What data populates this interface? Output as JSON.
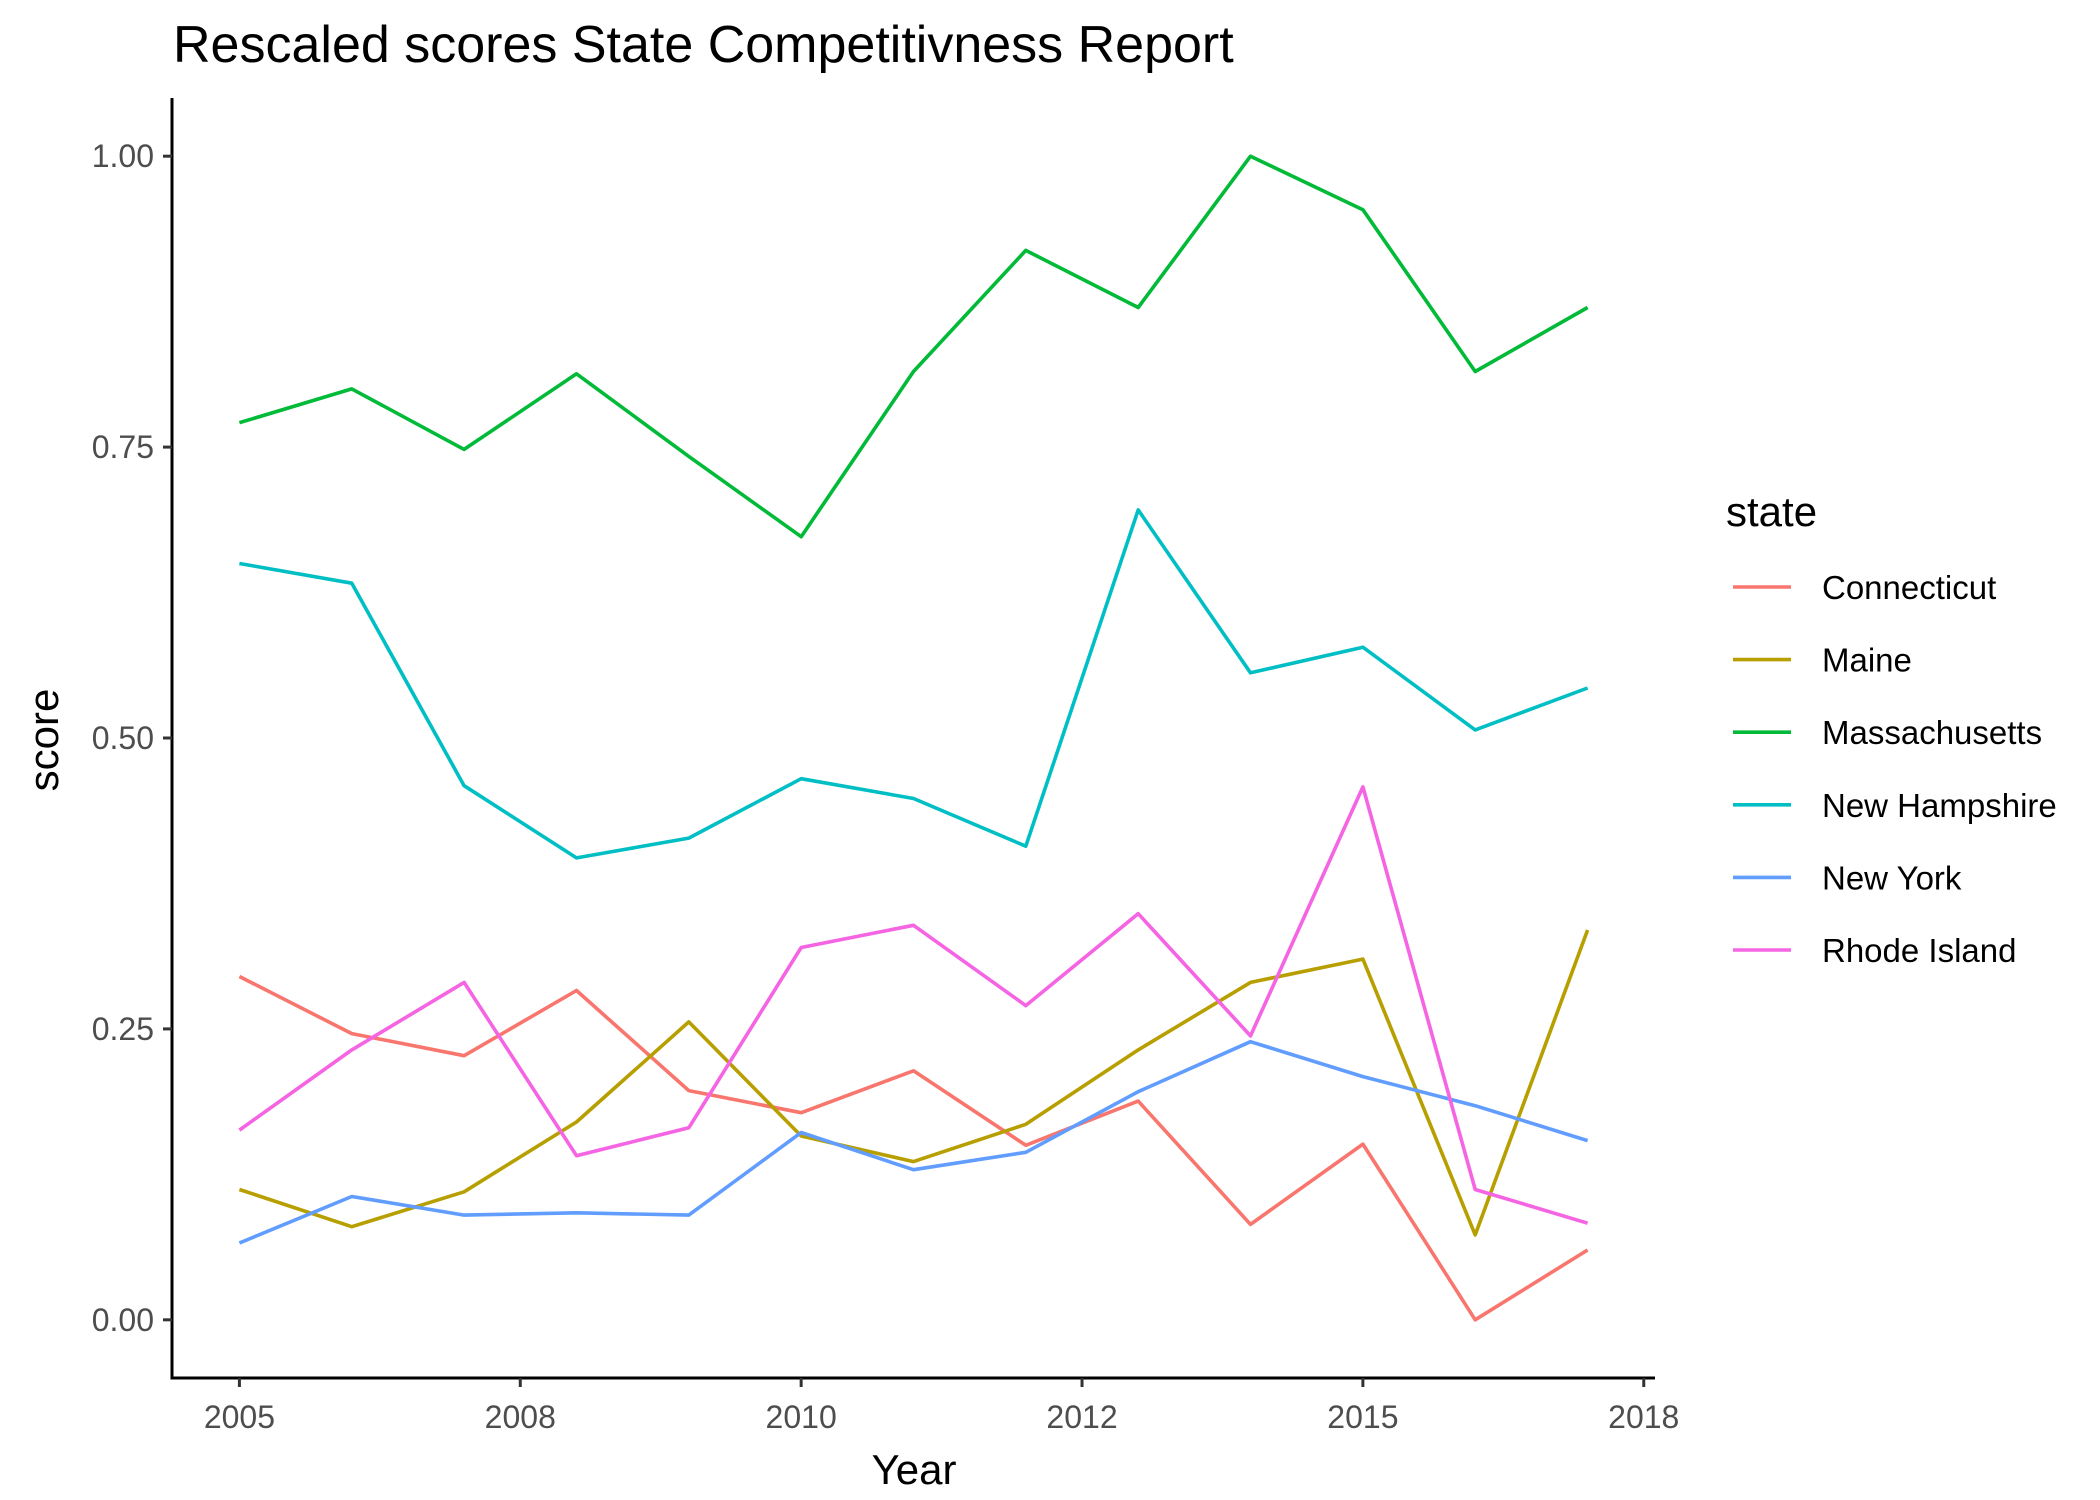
{
  "chart_data": {
    "type": "line",
    "title": "Rescaled scores State Competitivness Report",
    "xlabel": "Year",
    "ylabel": "score",
    "x": [
      2005,
      2006,
      2007,
      2008,
      2009,
      2010,
      2011,
      2012,
      2013,
      2014,
      2015,
      2016,
      2017
    ],
    "x_tick_values": [
      2005,
      2007.5,
      2010,
      2012.5,
      2015,
      2017.5
    ],
    "x_tick_labels": [
      "2005",
      "2008",
      "2010",
      "2012",
      "2015",
      "2018"
    ],
    "xlim": [
      2004.4,
      2017.6
    ],
    "y_ticks": [
      0.0,
      0.25,
      0.5,
      0.75,
      1.0
    ],
    "y_tick_labels": [
      "0.00",
      "0.25",
      "0.50",
      "0.75",
      "1.00"
    ],
    "ylim": [
      -0.05,
      1.05
    ],
    "grid": false,
    "legend": {
      "title": "state",
      "position": "right"
    },
    "series": [
      {
        "name": "Connecticut",
        "color": "#F8766D",
        "values": [
          0.295,
          0.246,
          0.227,
          0.283,
          0.197,
          0.178,
          0.214,
          0.15,
          0.188,
          0.082,
          0.151,
          0.0,
          0.06
        ]
      },
      {
        "name": "Maine",
        "color": "#B79F00",
        "values": [
          0.112,
          0.08,
          0.11,
          0.17,
          0.256,
          0.158,
          0.136,
          0.168,
          0.232,
          0.29,
          0.31,
          0.073,
          0.335
        ]
      },
      {
        "name": "Massachusetts",
        "color": "#00BA38",
        "values": [
          0.771,
          0.8,
          0.748,
          0.813,
          0.742,
          0.673,
          0.815,
          0.919,
          0.87,
          1.0,
          0.954,
          0.815,
          0.87
        ]
      },
      {
        "name": "New Hampshire",
        "color": "#00BFC4",
        "values": [
          0.65,
          0.633,
          0.459,
          0.397,
          0.414,
          0.465,
          0.448,
          0.407,
          0.696,
          0.556,
          0.578,
          0.507,
          0.543
        ]
      },
      {
        "name": "New York",
        "color": "#619CFF",
        "values": [
          0.066,
          0.106,
          0.09,
          0.092,
          0.09,
          0.161,
          0.129,
          0.144,
          0.196,
          0.239,
          0.209,
          0.184,
          0.154
        ]
      },
      {
        "name": "Rhode Island",
        "color": "#F564E3",
        "values": [
          0.163,
          0.232,
          0.29,
          0.141,
          0.165,
          0.32,
          0.339,
          0.27,
          0.349,
          0.244,
          0.458,
          0.112,
          0.083
        ]
      }
    ]
  }
}
